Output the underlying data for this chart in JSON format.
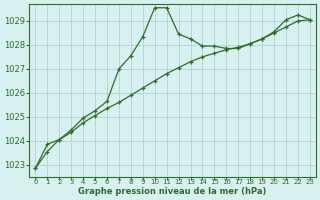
{
  "x_ticks": [
    0,
    1,
    2,
    3,
    4,
    5,
    6,
    7,
    8,
    9,
    10,
    11,
    12,
    13,
    14,
    15,
    16,
    17,
    18,
    19,
    20,
    21,
    22,
    23
  ],
  "ylim": [
    1022.5,
    1029.7
  ],
  "yticks": [
    1023,
    1024,
    1025,
    1026,
    1027,
    1028,
    1029
  ],
  "series1_x": [
    0,
    1,
    2,
    3,
    4,
    5,
    6,
    7,
    8,
    9,
    10,
    11,
    12,
    13,
    14,
    15,
    16,
    17,
    18,
    19,
    20,
    21,
    22,
    23
  ],
  "series1_y": [
    1022.85,
    1023.85,
    1024.05,
    1024.45,
    1024.95,
    1025.25,
    1025.65,
    1027.0,
    1027.55,
    1028.35,
    1029.55,
    1029.55,
    1028.45,
    1028.25,
    1027.95,
    1027.95,
    1027.85,
    1027.85,
    1028.05,
    1028.25,
    1028.55,
    1029.05,
    1029.25,
    1029.05
  ],
  "series2_x": [
    0,
    1,
    2,
    3,
    4,
    5,
    6,
    7,
    8,
    9,
    10,
    11,
    12,
    13,
    14,
    15,
    16,
    17,
    18,
    19,
    20,
    21,
    22,
    23
  ],
  "series2_y": [
    1022.85,
    1023.55,
    1024.05,
    1024.35,
    1024.75,
    1025.05,
    1025.35,
    1025.6,
    1025.9,
    1026.2,
    1026.5,
    1026.8,
    1027.05,
    1027.3,
    1027.5,
    1027.65,
    1027.8,
    1027.9,
    1028.05,
    1028.25,
    1028.5,
    1028.75,
    1029.0,
    1029.05
  ],
  "line_color": "#2d6e2d",
  "marker_color": "#2d6e2d",
  "bg_color": "#d8f0f0",
  "grid_color": "#aacccc",
  "xlabel": "Graphe pression niveau de la mer (hPa)",
  "xlabel_color": "#2d6e2d",
  "tick_color": "#2d6e2d",
  "axis_color": "#2d6e2d"
}
